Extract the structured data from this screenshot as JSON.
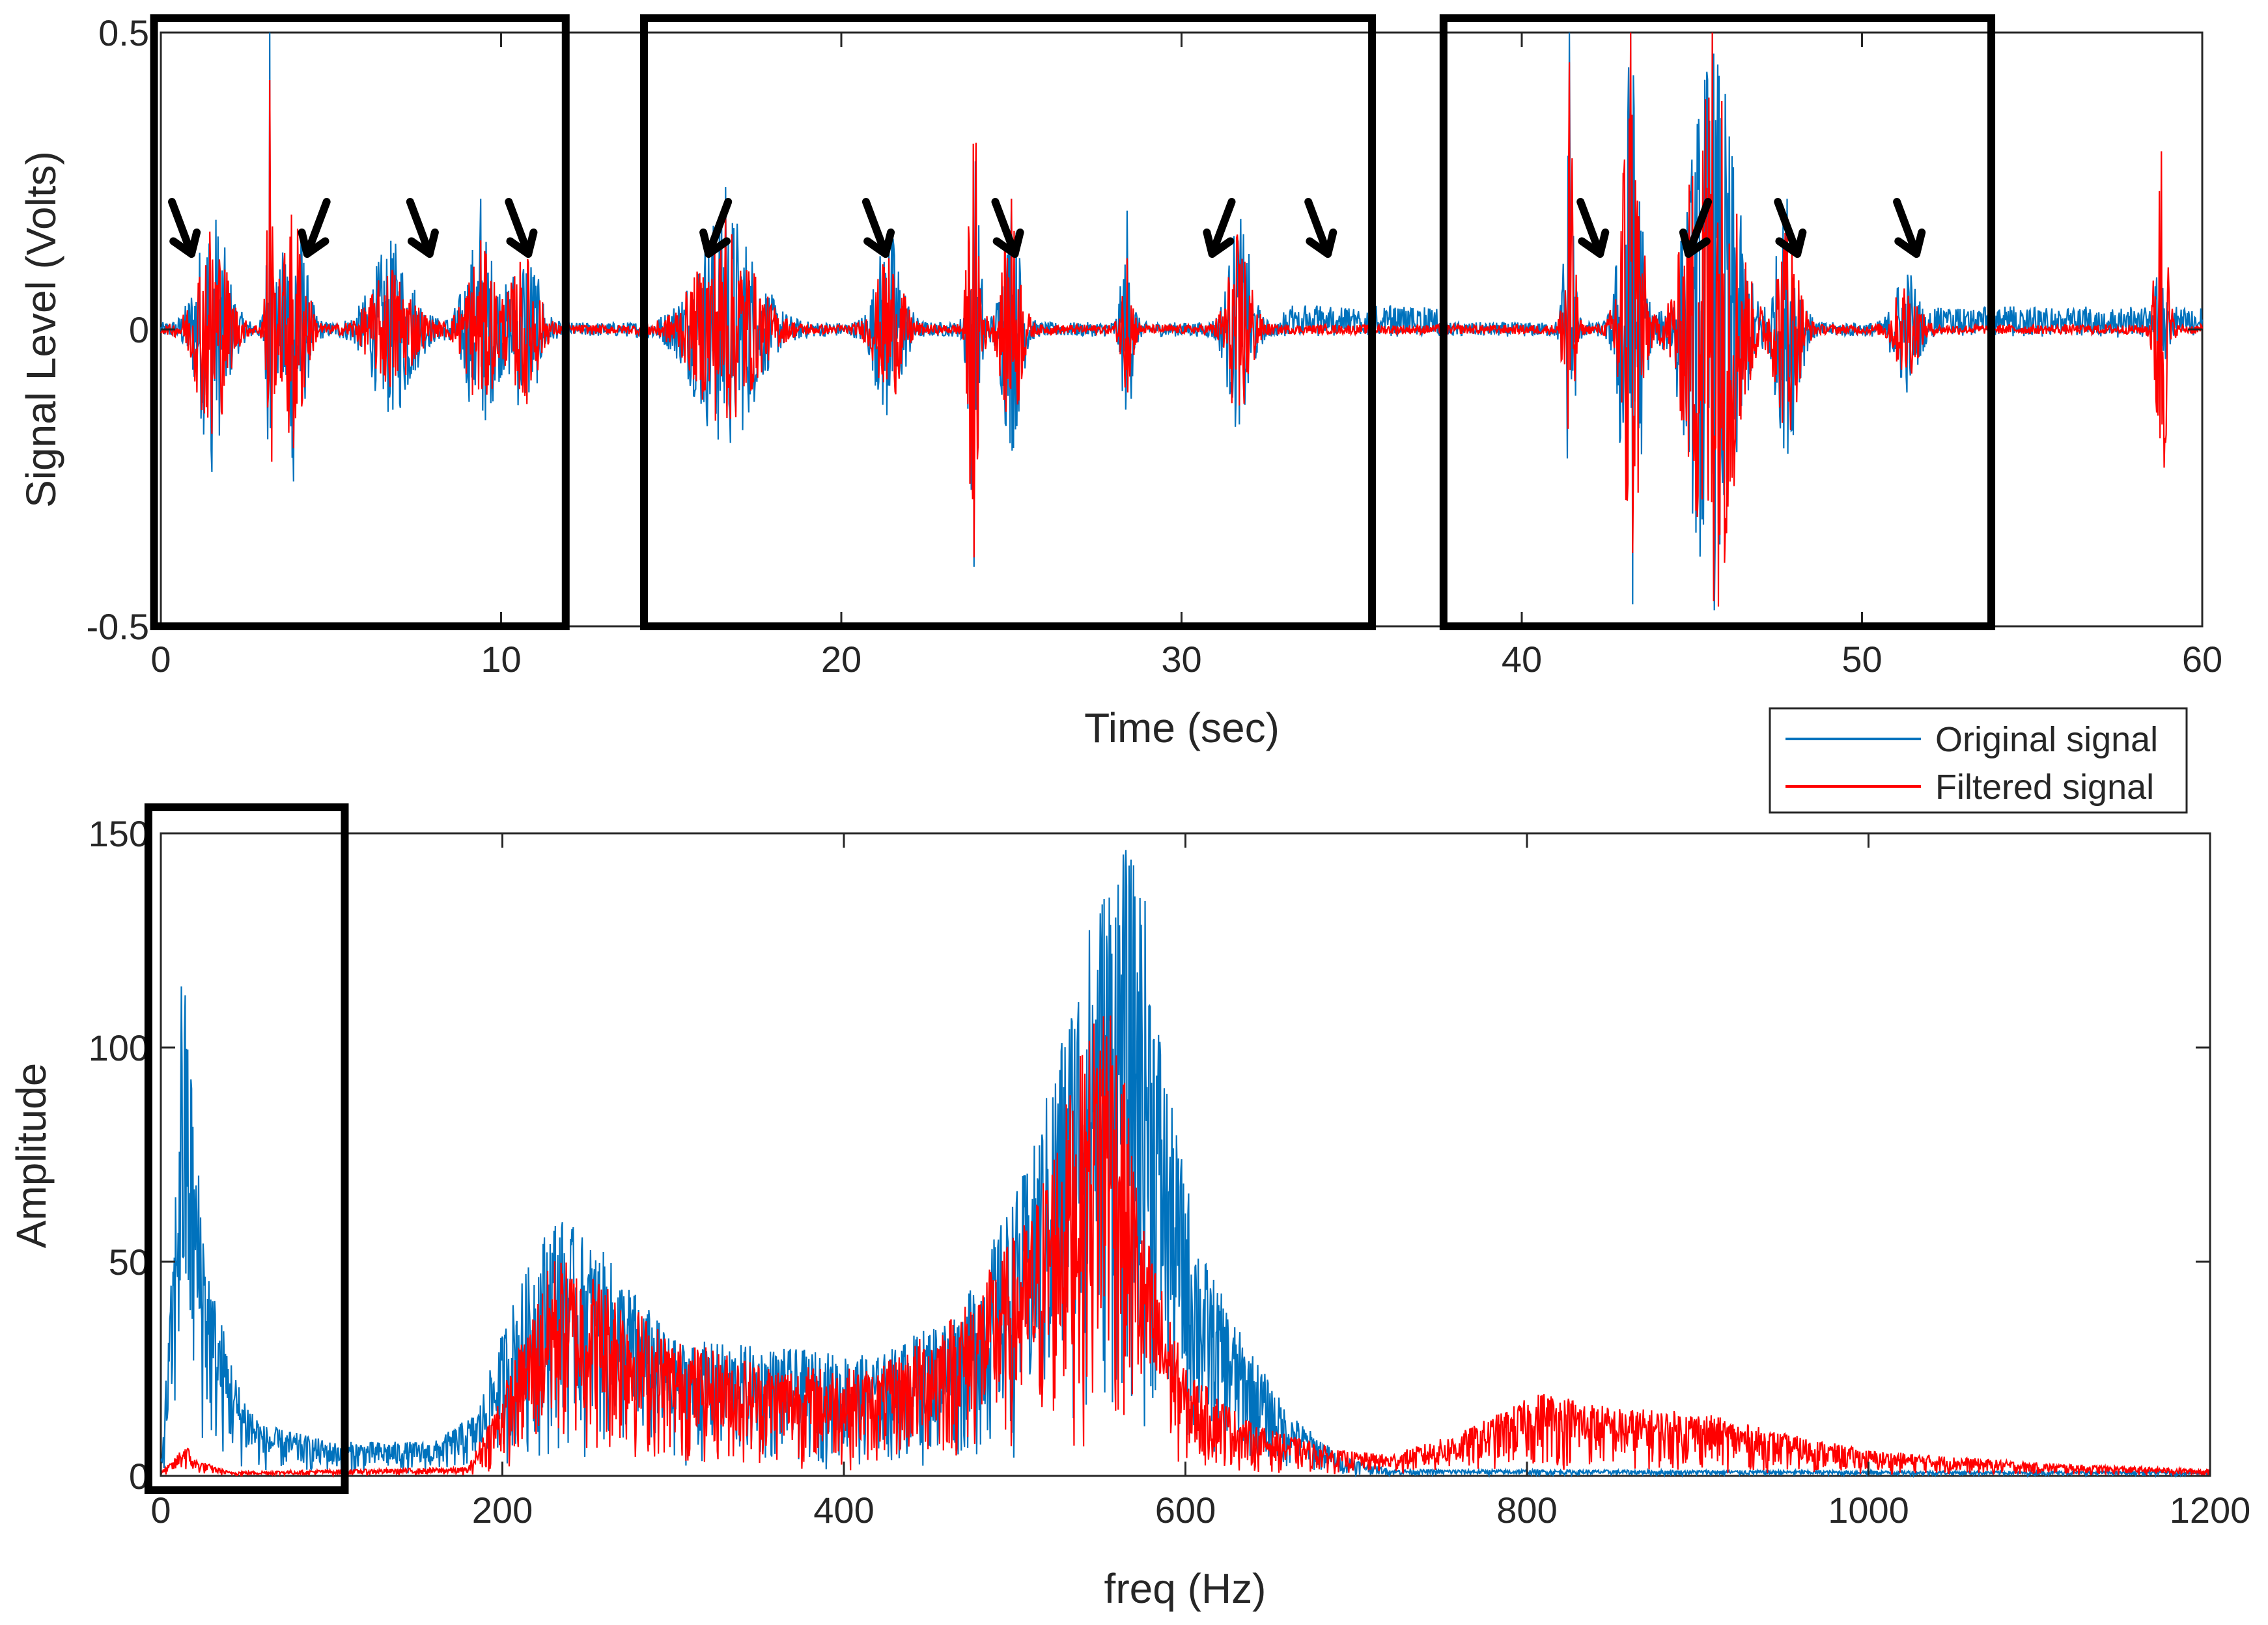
{
  "colors": {
    "original": "#0072BD",
    "filtered": "#FF0000",
    "axes": "#262626",
    "box": "#000000",
    "arrow": "#000000"
  },
  "legend": {
    "entries": [
      "Original signal",
      "Filtered signal"
    ],
    "placement": "between panels, right"
  },
  "chart_data": [
    {
      "type": "line",
      "panel": "time-domain",
      "title": "",
      "xlabel": "Time (sec)",
      "ylabel": "Signal Level (Volts)",
      "xlim": [
        0,
        60
      ],
      "ylim": [
        -0.5,
        0.5
      ],
      "xticks": [
        0,
        10,
        20,
        30,
        40,
        50,
        60
      ],
      "xtick_labels": [
        "0",
        "10",
        "20",
        "30",
        "40",
        "50",
        "60"
      ],
      "yticks": [
        -0.5,
        0,
        0.5
      ],
      "ytick_labels": [
        "-0.5",
        "0",
        "0.5"
      ],
      "grid": false,
      "highlight_boxes_x": [
        [
          -0.2,
          11.9
        ],
        [
          14.2,
          35.6
        ],
        [
          37.7,
          53.8
        ]
      ],
      "arrows_at_time": [
        0.9,
        4.3,
        7.9,
        10.8,
        16.1,
        21.3,
        25.1,
        30.9,
        34.3,
        42.3,
        44.9,
        48.1,
        51.6
      ],
      "series": [
        {
          "name": "Original signal",
          "color_key": "original",
          "noise_floor": 0.012,
          "baseline_segments": [
            [
              33,
              37.5,
              0.03
            ],
            [
              52,
              60,
              0.025
            ]
          ],
          "bursts": [
            {
              "t": 1.5,
              "width": 0.8,
              "amp": 0.2,
              "peak": 0.3
            },
            {
              "t": 3.2,
              "width": 0.2,
              "amp": 0.2,
              "peak": 0.5
            },
            {
              "t": 3.9,
              "width": 0.6,
              "amp": 0.22,
              "peak": 0.32
            },
            {
              "t": 6.8,
              "width": 1.1,
              "amp": 0.14,
              "peak": 0.12
            },
            {
              "t": 9.4,
              "width": 0.8,
              "amp": 0.16,
              "peak": 0.22
            },
            {
              "t": 10.7,
              "width": 0.7,
              "amp": 0.14,
              "peak": 0.12
            },
            {
              "t": 16.6,
              "width": 1.6,
              "amp": 0.2,
              "peak": 0.24
            },
            {
              "t": 21.4,
              "width": 0.7,
              "amp": 0.16,
              "peak": 0.14
            },
            {
              "t": 23.9,
              "width": 0.3,
              "amp": 0.3,
              "peak": 0.5
            },
            {
              "t": 25.0,
              "width": 0.5,
              "amp": 0.2,
              "peak": 0.22
            },
            {
              "t": 28.4,
              "width": 0.3,
              "amp": 0.15,
              "peak": 0.2
            },
            {
              "t": 31.7,
              "width": 0.6,
              "amp": 0.18,
              "peak": 0.2
            },
            {
              "t": 41.4,
              "width": 0.25,
              "amp": 0.35,
              "peak": 0.5
            },
            {
              "t": 43.2,
              "width": 0.5,
              "amp": 0.48,
              "peak": 0.5
            },
            {
              "t": 45.6,
              "width": 1.2,
              "amp": 0.48,
              "peak": 0.5
            },
            {
              "t": 47.8,
              "width": 0.6,
              "amp": 0.2,
              "peak": 0.22
            },
            {
              "t": 51.3,
              "width": 0.6,
              "amp": 0.1,
              "peak": 0.1
            },
            {
              "t": 58.8,
              "width": 0.3,
              "amp": 0.35,
              "peak": 0.33
            }
          ]
        },
        {
          "name": "Filtered signal",
          "color_key": "filtered",
          "noise_floor": 0.008,
          "baseline_segments": [],
          "bursts": [
            {
              "t": 1.5,
              "width": 0.8,
              "amp": 0.18,
              "peak": 0.22
            },
            {
              "t": 3.2,
              "width": 0.2,
              "amp": 0.25,
              "peak": 0.42
            },
            {
              "t": 3.9,
              "width": 0.6,
              "amp": 0.2,
              "peak": 0.25
            },
            {
              "t": 6.8,
              "width": 1.1,
              "amp": 0.1,
              "peak": 0.1
            },
            {
              "t": 9.4,
              "width": 0.8,
              "amp": 0.13,
              "peak": 0.15
            },
            {
              "t": 10.7,
              "width": 0.7,
              "amp": 0.12,
              "peak": 0.14
            },
            {
              "t": 16.6,
              "width": 1.6,
              "amp": 0.16,
              "peak": 0.2
            },
            {
              "t": 21.4,
              "width": 0.7,
              "amp": 0.12,
              "peak": 0.12
            },
            {
              "t": 23.9,
              "width": 0.3,
              "amp": 0.35,
              "peak": 0.48
            },
            {
              "t": 25.0,
              "width": 0.5,
              "amp": 0.18,
              "peak": 0.22
            },
            {
              "t": 28.4,
              "width": 0.3,
              "amp": 0.1,
              "peak": 0.12
            },
            {
              "t": 31.7,
              "width": 0.6,
              "amp": 0.16,
              "peak": 0.16
            },
            {
              "t": 41.4,
              "width": 0.25,
              "amp": 0.35,
              "peak": 0.45
            },
            {
              "t": 43.2,
              "width": 0.5,
              "amp": 0.48,
              "peak": 0.5
            },
            {
              "t": 45.6,
              "width": 1.2,
              "amp": 0.48,
              "peak": 0.5
            },
            {
              "t": 47.8,
              "width": 0.6,
              "amp": 0.18,
              "peak": 0.18
            },
            {
              "t": 51.3,
              "width": 0.6,
              "amp": 0.08,
              "peak": 0.08
            },
            {
              "t": 58.8,
              "width": 0.3,
              "amp": 0.3,
              "peak": 0.3
            }
          ]
        }
      ]
    },
    {
      "type": "line",
      "panel": "frequency-domain",
      "title": "",
      "xlabel": "freq (Hz)",
      "ylabel": "Amplitude",
      "xlim": [
        0,
        1200
      ],
      "ylim": [
        0,
        150
      ],
      "xticks": [
        0,
        200,
        400,
        600,
        800,
        1000,
        1200
      ],
      "xtick_labels": [
        "0",
        "200",
        "400",
        "600",
        "800",
        "1000",
        "1200"
      ],
      "yticks": [
        0,
        50,
        100,
        150
      ],
      "ytick_labels": [
        "0",
        "50",
        "100",
        "150"
      ],
      "grid": false,
      "highlight_boxes_x": [
        [
          -5,
          110
        ]
      ],
      "series": [
        {
          "name": "Original signal",
          "color_key": "original",
          "envelope": [
            [
              0,
              2
            ],
            [
              4,
              30
            ],
            [
              8,
              60
            ],
            [
              12,
              120
            ],
            [
              16,
              110
            ],
            [
              20,
              80
            ],
            [
              30,
              45
            ],
            [
              45,
              22
            ],
            [
              60,
              12
            ],
            [
              100,
              8
            ],
            [
              160,
              8
            ],
            [
              185,
              15
            ],
            [
              205,
              40
            ],
            [
              230,
              62
            ],
            [
              260,
              52
            ],
            [
              300,
              32
            ],
            [
              360,
              30
            ],
            [
              420,
              28
            ],
            [
              470,
              40
            ],
            [
              510,
              75
            ],
            [
              540,
              125
            ],
            [
              560,
              150
            ],
            [
              575,
              140
            ],
            [
              590,
              90
            ],
            [
              610,
              52
            ],
            [
              630,
              35
            ],
            [
              660,
              15
            ],
            [
              690,
              5
            ],
            [
              720,
              1.5
            ],
            [
              1200,
              1
            ]
          ]
        },
        {
          "name": "Filtered signal",
          "color_key": "filtered",
          "envelope": [
            [
              0,
              1
            ],
            [
              8,
              4
            ],
            [
              14,
              8
            ],
            [
              20,
              4
            ],
            [
              40,
              1
            ],
            [
              180,
              2
            ],
            [
              205,
              25
            ],
            [
              230,
              52
            ],
            [
              260,
              46
            ],
            [
              300,
              32
            ],
            [
              360,
              26
            ],
            [
              420,
              25
            ],
            [
              470,
              40
            ],
            [
              510,
              62
            ],
            [
              540,
              100
            ],
            [
              555,
              120
            ],
            [
              575,
              60
            ],
            [
              600,
              25
            ],
            [
              640,
              12
            ],
            [
              690,
              6
            ],
            [
              720,
              5
            ],
            [
              760,
              10
            ],
            [
              810,
              20
            ],
            [
              850,
              16
            ],
            [
              900,
              15
            ],
            [
              950,
              10
            ],
            [
              1000,
              6
            ],
            [
              1100,
              3
            ],
            [
              1200,
              1.5
            ]
          ]
        }
      ]
    }
  ]
}
